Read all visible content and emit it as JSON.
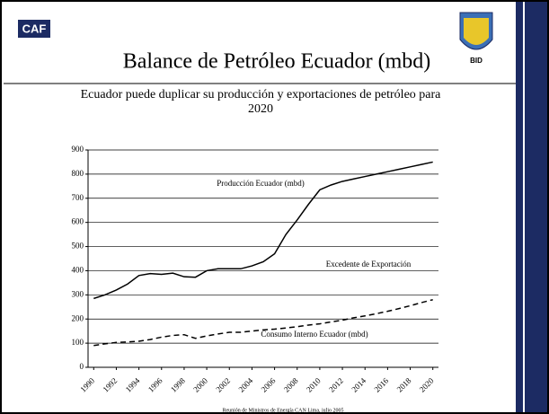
{
  "logos": {
    "left": "CAF",
    "right": "BID"
  },
  "footer": "Reunión de Ministros de Energía CAN Lima, julio 2005",
  "chart_data": {
    "type": "line",
    "title": "Balance de Petróleo Ecuador (mbd)",
    "subtitle": [
      "Ecuador puede duplicar su producción y exportaciones de petróleo para",
      "2020"
    ],
    "annotations": [
      "Producción Ecuador (mbd)",
      "Excedente de Exportación",
      "Consumo Interno Ecuador (mbd)"
    ],
    "x": [
      1990,
      1991,
      1992,
      1993,
      1994,
      1995,
      1996,
      1997,
      1998,
      1999,
      2000,
      2001,
      2002,
      2003,
      2004,
      2005,
      2006,
      2007,
      2008,
      2009,
      2010,
      2011,
      2012,
      2013,
      2014,
      2015,
      2016,
      2017,
      2018,
      2019,
      2020
    ],
    "series": [
      {
        "color": "#000000",
        "style": "solid",
        "values": [
          285,
          300,
          320,
          345,
          380,
          388,
          385,
          390,
          375,
          373,
          400,
          408,
          408,
          408,
          420,
          437,
          470,
          550,
          610,
          675,
          735,
          755,
          770,
          780,
          790,
          800,
          810,
          820,
          830,
          840,
          850
        ]
      },
      {
        "color": "#000000",
        "style": "dashed",
        "values": [
          90,
          97,
          103,
          105,
          108,
          115,
          125,
          132,
          135,
          120,
          130,
          138,
          145,
          145,
          150,
          155,
          158,
          163,
          168,
          175,
          180,
          188,
          195,
          205,
          213,
          222,
          232,
          243,
          255,
          268,
          280
        ]
      }
    ],
    "xlim": [
      1989.5,
      2020.5
    ],
    "xticks": [
      1990,
      1992,
      1994,
      1996,
      1998,
      2000,
      2002,
      2004,
      2006,
      2008,
      2010,
      2012,
      2014,
      2016,
      2018,
      2020
    ],
    "ylim": [
      0,
      900
    ],
    "yticks": [
      0,
      100,
      200,
      300,
      400,
      500,
      600,
      700,
      800,
      900
    ],
    "grid": true
  }
}
